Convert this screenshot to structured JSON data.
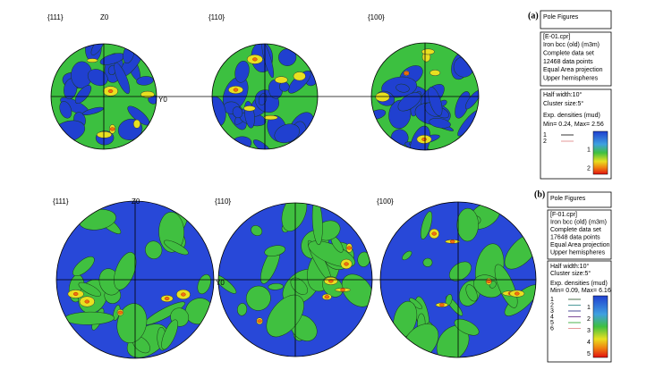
{
  "panels": [
    {
      "label": "(a)",
      "pole_figures": [
        "{111}",
        "{110}",
        "{100}"
      ],
      "axis_labels": {
        "z": "Z0",
        "y": "Y0"
      },
      "info": {
        "title": "Pole Figures",
        "details": [
          "[E-01.cpr]",
          "Iron bcc (old) (m3m)",
          "Complete data set",
          "12468 data points",
          "Equal Area projection",
          "Upper hemispheres"
        ],
        "settings": [
          "Half width:10°",
          "Cluster size:5°",
          "Exp. densities (mud)",
          "Min= 0.24, Max= 2.56"
        ],
        "legend": [
          "1",
          "2"
        ],
        "colorbar": [
          "1",
          "2"
        ]
      }
    },
    {
      "label": "(b)",
      "pole_figures": [
        "{111}",
        "{110}",
        "{100}"
      ],
      "axis_labels": {
        "z": "Z0",
        "y": "Y0"
      },
      "info": {
        "title": "Pole Figures",
        "details": [
          "[F-01.cpr]",
          "Iron bcc (old) (m3m)",
          "Complete data set",
          "17648 data points",
          "Equal Area projection",
          "Upper hemispheres"
        ],
        "settings": [
          "Half width:10°",
          "Cluster size:5°",
          "Exp. densities (mud)",
          "Min= 0.09, Max= 6.16"
        ],
        "legend": [
          "1",
          "2",
          "3",
          "4",
          "5",
          "6"
        ],
        "colorbar": [
          "1",
          "2",
          "3",
          "4",
          "5"
        ]
      }
    }
  ]
}
